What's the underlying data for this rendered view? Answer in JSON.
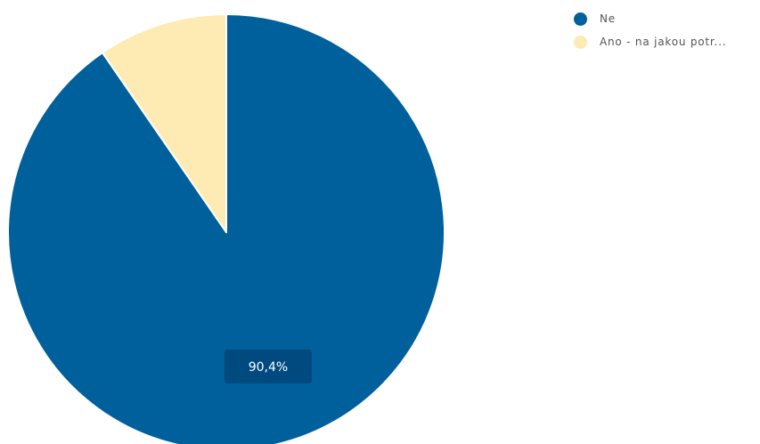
{
  "chart_data": {
    "type": "pie",
    "slices": [
      {
        "label": "Ne",
        "value": 90.4,
        "value_label": "90,4%",
        "color": "#00609c"
      },
      {
        "label": "Ano - na jakou potr...",
        "value": 9.6,
        "value_label": "",
        "color": "#fdebb3"
      }
    ],
    "legend_position": "top-right",
    "start_angle_deg": 0,
    "direction": "clockwise",
    "slice_separator_color": "#ffffff",
    "data_label_background": "#004a80",
    "data_label_text_color": "#ffffff"
  }
}
